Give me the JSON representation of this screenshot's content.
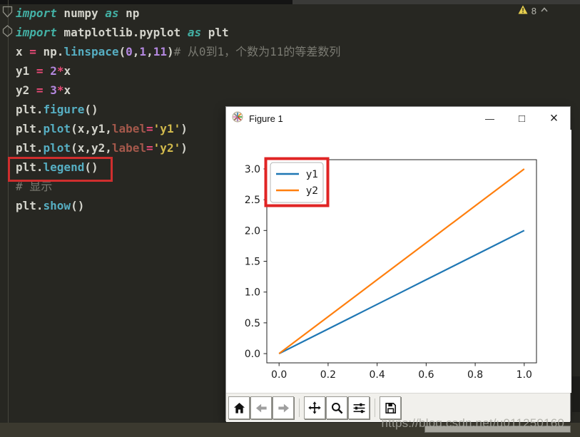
{
  "editor": {
    "background_color": "#272722",
    "annotation_color": "#cf2e2e",
    "syntax_colors": {
      "keyword": "#43b1a5",
      "function": "#56aec2",
      "plain": "#d4d4cc",
      "operator": "#e94a77",
      "number": "#b488e0",
      "string": "#d2ba4c",
      "parameter": "#a4584b",
      "comment": "#7b7b73"
    },
    "warning": {
      "icon": "warning-triangle-icon",
      "count": "8",
      "collapse_icon": "chevron-up-icon"
    },
    "gutter_markers": [
      {
        "icon": "code-fold-icon"
      },
      {
        "icon": "code-fold-icon"
      }
    ],
    "code_lines": [
      {
        "tokens": [
          [
            "kw",
            "import"
          ],
          [
            "pl",
            " numpy "
          ],
          [
            "kw",
            "as"
          ],
          [
            "pl",
            " np"
          ]
        ]
      },
      {
        "tokens": [
          [
            "kw",
            "import"
          ],
          [
            "pl",
            " matplotlib.pyplot "
          ],
          [
            "kw",
            "as"
          ],
          [
            "pl",
            " plt"
          ]
        ]
      },
      {
        "tokens": [
          [
            "pl",
            "x "
          ],
          [
            "op",
            "="
          ],
          [
            "pl",
            " np."
          ],
          [
            "fn",
            "linspace"
          ],
          [
            "pl",
            "("
          ],
          [
            "num",
            "0"
          ],
          [
            "pl",
            ","
          ],
          [
            "num",
            "1"
          ],
          [
            "pl",
            ","
          ],
          [
            "num",
            "11"
          ],
          [
            "pl",
            ")"
          ],
          [
            "com",
            "# 从0到1，个数为11的等差数列"
          ]
        ]
      },
      {
        "tokens": [
          [
            "pl",
            "y1 "
          ],
          [
            "op",
            "="
          ],
          [
            "pl",
            " "
          ],
          [
            "num",
            "2"
          ],
          [
            "op",
            "*"
          ],
          [
            "pl",
            "x"
          ]
        ]
      },
      {
        "tokens": [
          [
            "pl",
            "y2 "
          ],
          [
            "op",
            "="
          ],
          [
            "pl",
            " "
          ],
          [
            "num",
            "3"
          ],
          [
            "op",
            "*"
          ],
          [
            "pl",
            "x"
          ]
        ]
      },
      {
        "tokens": [
          [
            "pl",
            "plt."
          ],
          [
            "fn",
            "figure"
          ],
          [
            "pl",
            "()"
          ]
        ]
      },
      {
        "tokens": [
          [
            "pl",
            "plt."
          ],
          [
            "fn",
            "plot"
          ],
          [
            "pl",
            "(x,y1,"
          ],
          [
            "pm",
            "label"
          ],
          [
            "op",
            "="
          ],
          [
            "st",
            "'y1'"
          ],
          [
            "pl",
            ")"
          ]
        ]
      },
      {
        "tokens": [
          [
            "pl",
            "plt."
          ],
          [
            "fn",
            "plot"
          ],
          [
            "pl",
            "(x,y2,"
          ],
          [
            "pm",
            "label"
          ],
          [
            "op",
            "="
          ],
          [
            "st",
            "'y2'"
          ],
          [
            "pl",
            ")"
          ]
        ]
      },
      {
        "tokens": [
          [
            "pl",
            "plt."
          ],
          [
            "fn",
            "legend"
          ],
          [
            "pl",
            "()"
          ]
        ],
        "highlighted": true
      },
      {
        "tokens": [
          [
            "com",
            "# 显示"
          ]
        ]
      },
      {
        "tokens": [
          [
            "pl",
            "plt."
          ],
          [
            "fn",
            "show"
          ],
          [
            "pl",
            "()"
          ]
        ]
      }
    ]
  },
  "figure_window": {
    "title": "Figure 1",
    "title_icon": "matplotlib-logo-icon",
    "controls": [
      {
        "name": "minimize-button",
        "glyph": "—"
      },
      {
        "name": "maximize-button",
        "glyph": "□"
      },
      {
        "name": "close-button",
        "glyph": "×"
      }
    ],
    "toolbar": [
      {
        "name": "home-button",
        "icon": "home-icon",
        "group": 1,
        "disabled": false
      },
      {
        "name": "back-button",
        "icon": "arrow-left-icon",
        "group": 1,
        "disabled": true
      },
      {
        "name": "forward-button",
        "icon": "arrow-right-icon",
        "group": 1,
        "disabled": true
      },
      {
        "name": "pan-button",
        "icon": "move-arrows-icon",
        "group": 2,
        "disabled": false
      },
      {
        "name": "zoom-button",
        "icon": "magnifier-icon",
        "group": 2,
        "disabled": false
      },
      {
        "name": "configure-subplots-button",
        "icon": "sliders-icon",
        "group": 2,
        "disabled": false
      },
      {
        "name": "save-button",
        "icon": "floppy-disk-icon",
        "group": 3,
        "disabled": false
      }
    ]
  },
  "chart_data": {
    "type": "line",
    "title": "",
    "xlabel": "",
    "ylabel": "",
    "x": [
      0.0,
      0.1,
      0.2,
      0.3,
      0.4,
      0.5,
      0.6,
      0.7,
      0.8,
      0.9,
      1.0
    ],
    "series": [
      {
        "name": "y1",
        "color": "#1f77b4",
        "values": [
          0.0,
          0.2,
          0.4,
          0.6,
          0.8,
          1.0,
          1.2,
          1.4,
          1.6,
          1.8,
          2.0
        ]
      },
      {
        "name": "y2",
        "color": "#ff7f0e",
        "values": [
          0.0,
          0.3,
          0.6,
          0.9,
          1.2,
          1.5,
          1.8,
          2.1,
          2.4,
          2.7,
          3.0
        ]
      }
    ],
    "xticks": [
      0.0,
      0.2,
      0.4,
      0.6,
      0.8,
      1.0
    ],
    "yticks": [
      0.0,
      0.5,
      1.0,
      1.5,
      2.0,
      2.5,
      3.0
    ],
    "xlim": [
      -0.05,
      1.05
    ],
    "ylim": [
      -0.15,
      3.15
    ],
    "grid": false,
    "legend": {
      "position": "upper-left",
      "entries": [
        "y1",
        "y2"
      ],
      "highlighted": true,
      "highlight_color": "#e02424"
    }
  },
  "watermark": {
    "text": "https://blog.csdn.net/u011250160"
  }
}
